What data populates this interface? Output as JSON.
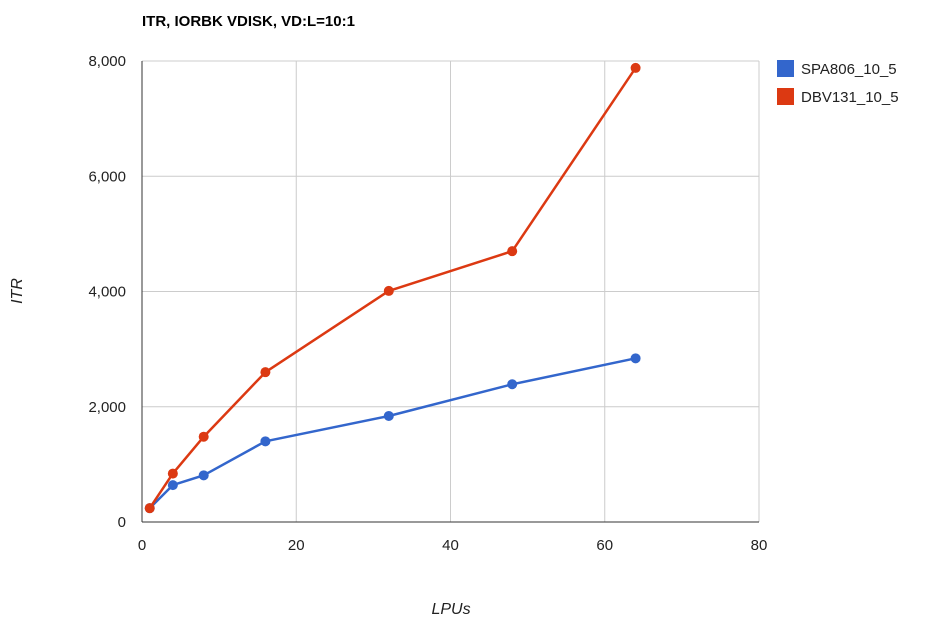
{
  "chart_data": {
    "type": "line",
    "title": "ITR, IORBK VDISK, VD:L=10:1",
    "xlabel": "LPUs",
    "ylabel": "ITR",
    "xlim": [
      0,
      80
    ],
    "ylim": [
      0,
      8000
    ],
    "x_ticks": [
      0,
      20,
      40,
      60,
      80
    ],
    "y_ticks": [
      0,
      2000,
      4000,
      6000,
      8000
    ],
    "x_tick_labels": [
      "0",
      "20",
      "40",
      "60",
      "80"
    ],
    "y_tick_labels": [
      "0",
      "2,000",
      "4,000",
      "6,000",
      "8,000"
    ],
    "grid": true,
    "legend_position": "right",
    "series": [
      {
        "name": "SPA806_10_5",
        "color": "#3366cc",
        "points": [
          {
            "x": 1,
            "y": 240
          },
          {
            "x": 4,
            "y": 640
          },
          {
            "x": 8,
            "y": 810
          },
          {
            "x": 16,
            "y": 1400
          },
          {
            "x": 32,
            "y": 1840
          },
          {
            "x": 48,
            "y": 2390
          },
          {
            "x": 64,
            "y": 2840
          }
        ]
      },
      {
        "name": "DBV131_10_5",
        "color": "#dc3912",
        "points": [
          {
            "x": 1,
            "y": 240
          },
          {
            "x": 4,
            "y": 840
          },
          {
            "x": 8,
            "y": 1480
          },
          {
            "x": 16,
            "y": 2600
          },
          {
            "x": 32,
            "y": 4010
          },
          {
            "x": 48,
            "y": 4700
          },
          {
            "x": 64,
            "y": 7880
          }
        ]
      }
    ]
  }
}
